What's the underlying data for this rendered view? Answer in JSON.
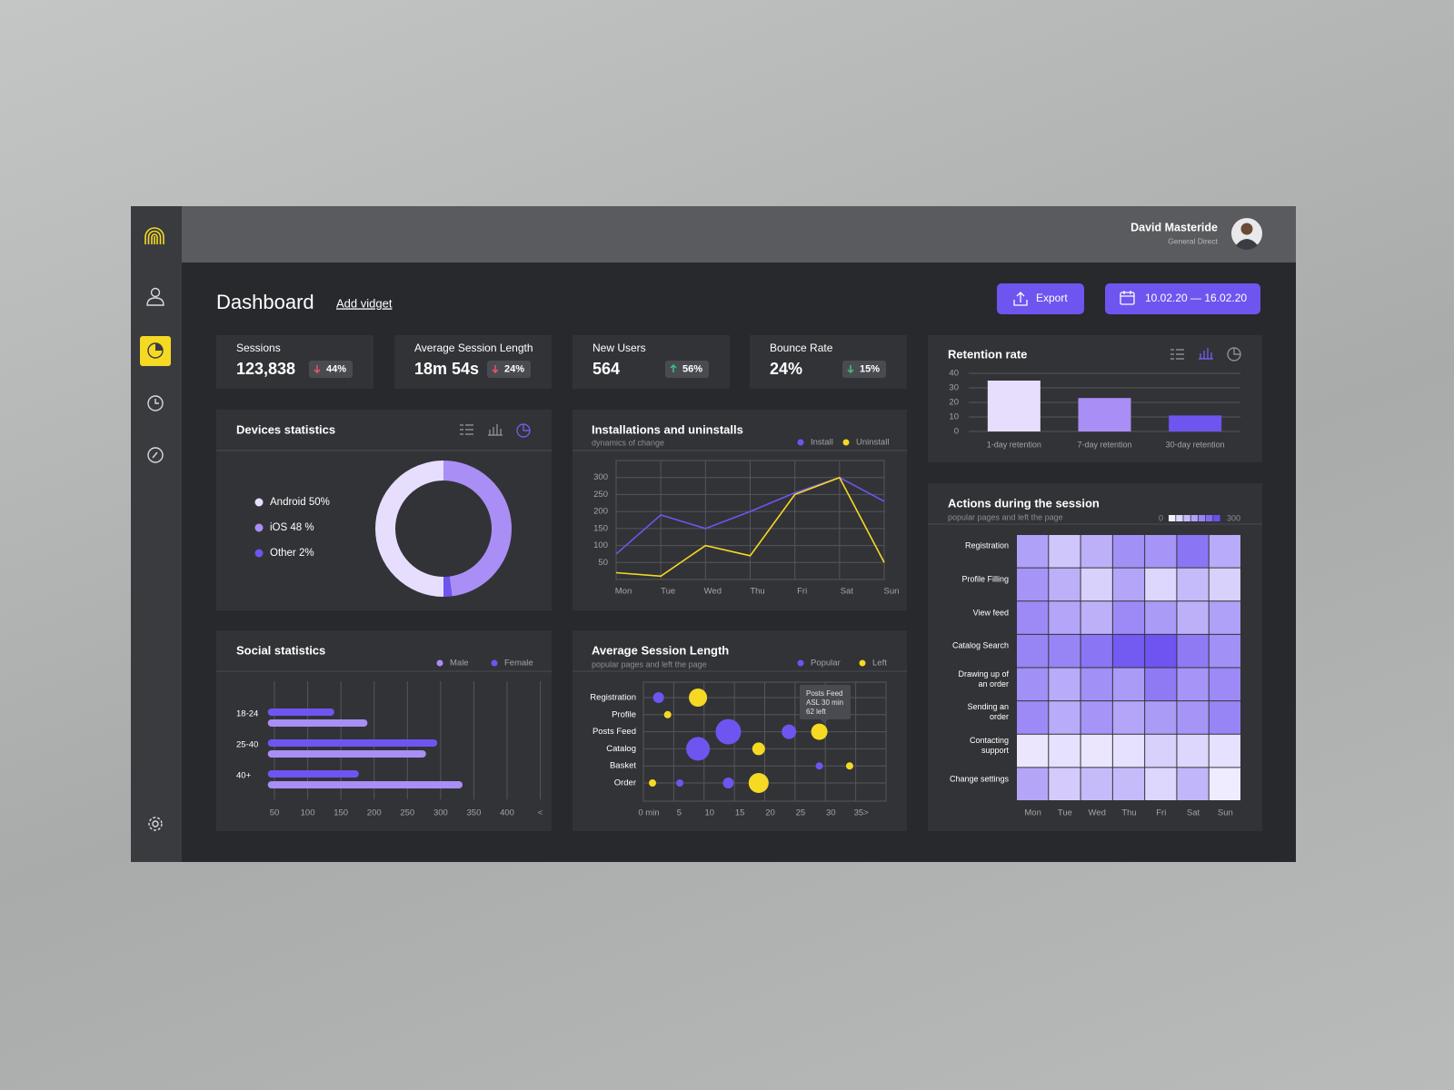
{
  "user": {
    "name": "David Masteride",
    "role": "General Direct"
  },
  "header": {
    "title": "Dashboard",
    "add_widget": "Add vidget",
    "export": "Export",
    "date_range": "10.02.20 — 16.02.20"
  },
  "kpis": [
    {
      "label": "Sessions",
      "value": "123,838",
      "change": "44%",
      "arrow": "down",
      "arrow_color": "#f0506e"
    },
    {
      "label": "Average Session Length",
      "value": "18m 54s",
      "change": "24%",
      "arrow": "down",
      "arrow_color": "#f0506e"
    },
    {
      "label": "New Users",
      "value": "564",
      "change": "56%",
      "arrow": "up",
      "arrow_color": "#3fbf7f"
    },
    {
      "label": "Bounce Rate",
      "value": "24%",
      "change": "15%",
      "arrow": "down",
      "arrow_color": "#3fbf7f"
    }
  ],
  "chart_data": [
    {
      "type": "pie",
      "title": "Devices statistics",
      "categories": [
        "Android 50%",
        "iOS 48 %",
        "Other 2%"
      ],
      "values": [
        50,
        48,
        2
      ],
      "colors": [
        "#e6defc",
        "#a98ef5",
        "#6e55f0"
      ],
      "donut": true
    },
    {
      "type": "line",
      "title": "Installations and uninstalls",
      "subtitle": "dynamics of change",
      "categories": [
        "Mon",
        "Tue",
        "Wed",
        "Thu",
        "Fri",
        "Sat",
        "Sun"
      ],
      "series": [
        {
          "name": "Install",
          "color": "#6e55f0",
          "values": [
            75,
            190,
            150,
            200,
            255,
            300,
            230
          ]
        },
        {
          "name": "Uninstall",
          "color": "#f5d923",
          "values": [
            20,
            10,
            100,
            70,
            250,
            300,
            50
          ]
        }
      ],
      "ylim": [
        0,
        350
      ],
      "yticks": [
        50,
        100,
        150,
        200,
        250,
        300
      ],
      "grid": true
    },
    {
      "type": "bar",
      "orientation": "horizontal",
      "title": "Social statistics",
      "categories": [
        "18-24",
        "25-40",
        "40+"
      ],
      "series": [
        {
          "name": "Male",
          "color": "#a98ef5",
          "values": [
            190,
            278,
            333
          ]
        },
        {
          "name": "Female",
          "color": "#6e55f0",
          "values": [
            140,
            295,
            177
          ]
        }
      ],
      "xlim": [
        40,
        460
      ],
      "xticks": [
        50,
        100,
        150,
        200,
        250,
        300,
        350,
        400,
        {
          "value": 450,
          "label": "<"
        }
      ],
      "grid": true
    },
    {
      "type": "scatter",
      "title": "Average Session Length",
      "subtitle": "popular pages and left the page",
      "categories": [
        "Registration",
        "Profile",
        "Posts Feed",
        "Catalog",
        "Basket",
        "Order"
      ],
      "series": [
        {
          "name": "Popular",
          "color": "#6e55f0",
          "x": [
            2.5,
            14,
            24,
            9,
            29,
            6,
            14
          ],
          "y": [
            "Registration",
            "Posts Feed",
            "Posts Feed",
            "Catalog",
            "Basket",
            "Order",
            "Order"
          ],
          "sizes": [
            6,
            14,
            8,
            13,
            4,
            4,
            6
          ]
        },
        {
          "name": "Left",
          "color": "#f5d923",
          "x": [
            9,
            4,
            29,
            19,
            34,
            1.5,
            19
          ],
          "y": [
            "Registration",
            "Profile",
            "Posts Feed",
            "Catalog",
            "Basket",
            "Order",
            "Order"
          ],
          "sizes": [
            10,
            4,
            9,
            7,
            4,
            4,
            11
          ]
        }
      ],
      "xlim": [
        0,
        40
      ],
      "xticks": [
        {
          "value": 0,
          "label": "0 min"
        },
        5,
        10,
        15,
        20,
        25,
        30,
        {
          "value": 35,
          "label": "35>"
        }
      ],
      "grid": true,
      "annotation": [
        "Posts Feed",
        "ASL 30 min",
        "62 left"
      ]
    },
    {
      "type": "bar",
      "title": "Retention rate",
      "categories": [
        "1-day retention",
        "7-day retention",
        "30-day retention"
      ],
      "values": [
        35,
        23,
        11
      ],
      "colors": [
        "#e6defc",
        "#a98ef5",
        "#6e55f0"
      ],
      "ylim": [
        0,
        40
      ],
      "yticks": [
        0,
        10,
        20,
        30,
        40
      ],
      "grid": true
    },
    {
      "type": "heatmap",
      "title": "Actions during the session",
      "subtitle": "popular pages and left the page",
      "rows": [
        "Registration",
        "Profile Filling",
        "View feed",
        "Catalog Search",
        "Drawing up of an order",
        "Sending an order",
        "Contacting support",
        "Change settings"
      ],
      "columns": [
        "Mon",
        "Tue",
        "Wed",
        "Thu",
        "Fri",
        "Sat",
        "Sun"
      ],
      "values": [
        [
          150,
          80,
          120,
          180,
          170,
          230,
          130
        ],
        [
          170,
          120,
          60,
          140,
          50,
          100,
          60
        ],
        [
          190,
          140,
          120,
          190,
          160,
          120,
          150
        ],
        [
          200,
          200,
          230,
          280,
          290,
          220,
          180
        ],
        [
          180,
          130,
          180,
          160,
          220,
          170,
          190
        ],
        [
          190,
          130,
          170,
          140,
          160,
          170,
          200
        ],
        [
          20,
          30,
          20,
          30,
          60,
          50,
          30
        ],
        [
          140,
          70,
          100,
          100,
          50,
          110,
          10
        ]
      ],
      "scale": {
        "min": 0,
        "max": 300,
        "colors": [
          "#f4f1ff",
          "#6a4ff0"
        ]
      }
    }
  ]
}
